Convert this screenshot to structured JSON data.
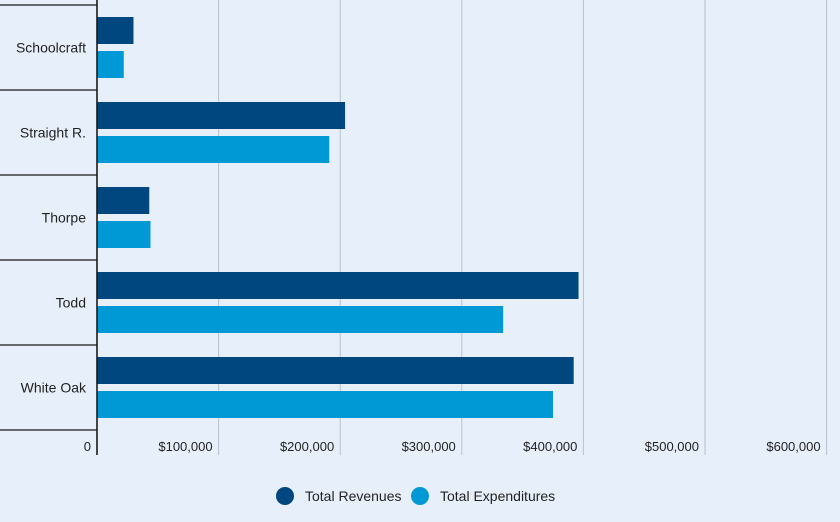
{
  "chart_data": {
    "type": "bar",
    "orientation": "horizontal",
    "categories": [
      "Schoolcraft",
      "Straight R.",
      "Thorpe",
      "Todd",
      "White Oak"
    ],
    "series": [
      {
        "name": "Total Revenues",
        "color": "#00467f",
        "values": [
          30000,
          204000,
          43000,
          396000,
          392000
        ]
      },
      {
        "name": "Total Expenditures",
        "color": "#0099d6",
        "values": [
          22000,
          191000,
          44000,
          334000,
          375000
        ]
      }
    ],
    "xlim": [
      0,
      600000
    ],
    "xticks": [
      0,
      100000,
      200000,
      300000,
      400000,
      500000,
      600000
    ],
    "xtick_labels": [
      "0",
      "$100,000",
      "$200,000",
      "$300,000",
      "$400,000",
      "$500,000",
      "$600,000"
    ],
    "legend_position": "bottom-center",
    "grid": true
  }
}
